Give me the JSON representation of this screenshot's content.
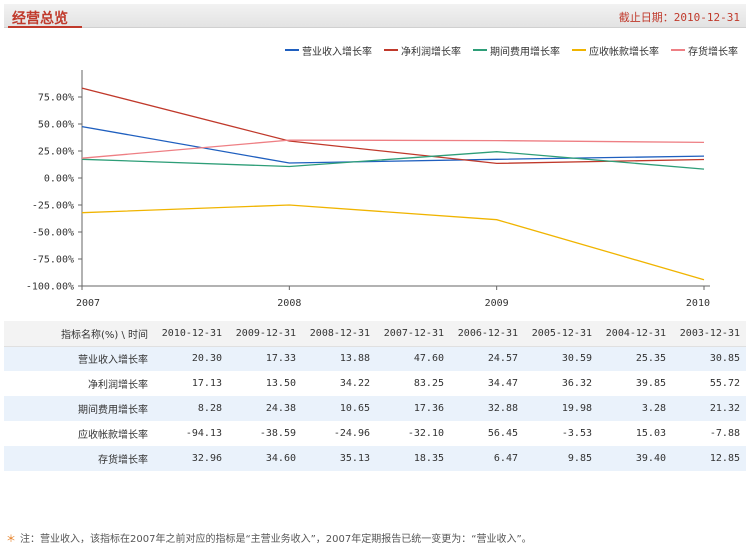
{
  "header": {
    "title": "经营总览",
    "date_label": "截止日期：",
    "date_value": "2010-12-31"
  },
  "note": "注：营业收入，该指标在2007年之前对应的指标是“主营业务收入”，2007年定期报告已统一变更为：“营业收入”。",
  "chart_data": {
    "type": "line",
    "x": [
      2007,
      2008,
      2009,
      2010
    ],
    "x_ticks": [
      "2007",
      "2008",
      "2009",
      "2010"
    ],
    "y_ticks": [
      "75.00%",
      "50.00%",
      "25.00%",
      "0.00%",
      "-25.00%",
      "-50.00%",
      "-75.00%",
      "-100.00%"
    ],
    "ylim": [
      -100,
      100
    ],
    "legend_position": "top-right",
    "series": [
      {
        "name": "营业收入增长率",
        "color": "#1f5fbf",
        "values": [
          47.6,
          13.88,
          17.33,
          20.3
        ]
      },
      {
        "name": "净利润增长率",
        "color": "#c0392b",
        "values": [
          83.25,
          34.22,
          13.5,
          17.13
        ]
      },
      {
        "name": "期间费用增长率",
        "color": "#2e9e78",
        "values": [
          17.36,
          10.65,
          24.38,
          8.28
        ]
      },
      {
        "name": "应收帐款增长率",
        "color": "#f0b400",
        "values": [
          -32.1,
          -24.96,
          -38.59,
          -94.13
        ]
      },
      {
        "name": "存货增长率",
        "color": "#ee7f84",
        "values": [
          18.35,
          35.13,
          34.6,
          32.96
        ]
      }
    ]
  },
  "table": {
    "header_label": "指标名称(%) \\ 时间",
    "columns": [
      "2010-12-31",
      "2009-12-31",
      "2008-12-31",
      "2007-12-31",
      "2006-12-31",
      "2005-12-31",
      "2004-12-31",
      "2003-12-31"
    ],
    "rows": [
      {
        "label": "营业收入增长率",
        "values": [
          "20.30",
          "17.33",
          "13.88",
          "47.60",
          "24.57",
          "30.59",
          "25.35",
          "30.85"
        ]
      },
      {
        "label": "净利润增长率",
        "values": [
          "17.13",
          "13.50",
          "34.22",
          "83.25",
          "34.47",
          "36.32",
          "39.85",
          "55.72"
        ]
      },
      {
        "label": "期间费用增长率",
        "values": [
          "8.28",
          "24.38",
          "10.65",
          "17.36",
          "32.88",
          "19.98",
          "3.28",
          "21.32"
        ]
      },
      {
        "label": "应收帐款增长率",
        "values": [
          "-94.13",
          "-38.59",
          "-24.96",
          "-32.10",
          "56.45",
          "-3.53",
          "15.03",
          "-7.88"
        ]
      },
      {
        "label": "存货增长率",
        "values": [
          "32.96",
          "34.60",
          "35.13",
          "18.35",
          "6.47",
          "9.85",
          "39.40",
          "12.85"
        ]
      }
    ]
  }
}
